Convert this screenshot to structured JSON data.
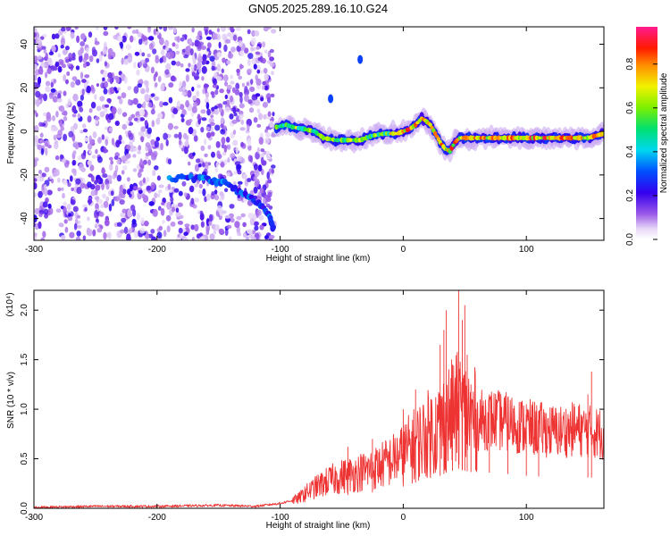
{
  "title": "GN05.2025.289.16.10.G24",
  "chart_data": [
    {
      "type": "heatmap",
      "title": "GN05.2025.289.16.10.G24",
      "xlabel": "Height of straight line (km)",
      "ylabel": "Frequency (Hz)",
      "xlim": [
        -300,
        163
      ],
      "ylim": [
        -50,
        48
      ],
      "xticks": [
        "-300",
        "-200",
        "-100",
        "0",
        "100"
      ],
      "xtick_values": [
        -300,
        -200,
        -100,
        0,
        100
      ],
      "yticks": [
        "40",
        "20",
        "0",
        "-20",
        "-40"
      ],
      "ytick_values": [
        40,
        20,
        0,
        -20,
        -40
      ],
      "colorbar": {
        "label": "Normalized spectral amplitude",
        "range": [
          0,
          0.97
        ],
        "ticks": [
          "0.0",
          "0.2",
          "0.4",
          "0.6",
          "0.8"
        ],
        "tick_values": [
          0,
          0.2,
          0.4,
          0.6,
          0.8
        ],
        "colormap": "rainbow (white → violet → blue → cyan → green → yellow → red → magenta)"
      },
      "noise_region_x": [
        -300,
        -105
      ],
      "arc_feature": {
        "points": [
          [
            -190,
            -22
          ],
          [
            -175,
            -21
          ],
          [
            -160,
            -22
          ],
          [
            -150,
            -23
          ],
          [
            -140,
            -25
          ],
          [
            -130,
            -29
          ],
          [
            -120,
            -32
          ],
          [
            -112,
            -36
          ],
          [
            -108,
            -40
          ],
          [
            -105,
            -46
          ]
        ]
      },
      "signal_track": {
        "points": [
          [
            -103,
            2
          ],
          [
            -95,
            3
          ],
          [
            -90,
            2
          ],
          [
            -80,
            1
          ],
          [
            -72,
            0
          ],
          [
            -65,
            -3
          ],
          [
            -55,
            -4
          ],
          [
            -45,
            -4
          ],
          [
            -35,
            -4
          ],
          [
            -25,
            -2
          ],
          [
            -15,
            -1
          ],
          [
            -5,
            -1
          ],
          [
            0,
            0
          ],
          [
            5,
            1
          ],
          [
            10,
            3
          ],
          [
            15,
            6
          ],
          [
            18,
            5
          ],
          [
            22,
            3
          ],
          [
            26,
            -1
          ],
          [
            30,
            -5
          ],
          [
            34,
            -8
          ],
          [
            38,
            -9
          ],
          [
            42,
            -5
          ],
          [
            46,
            -3
          ],
          [
            55,
            -3
          ],
          [
            70,
            -3
          ],
          [
            90,
            -3
          ],
          [
            110,
            -3
          ],
          [
            130,
            -3
          ],
          [
            150,
            -3
          ],
          [
            163,
            -1
          ]
        ]
      },
      "outlier_blobs": [
        [
          -59,
          15
        ],
        [
          -35,
          33
        ]
      ]
    },
    {
      "type": "line",
      "xlabel": "Height of straight line (km)",
      "ylabel": "SNR (10 * v/v)",
      "scale_note": "(x10⁴)",
      "xlim": [
        -300,
        163
      ],
      "ylim": [
        0,
        2.2
      ],
      "xticks": [
        "-300",
        "-200",
        "-100",
        "0",
        "100"
      ],
      "xtick_values": [
        -300,
        -200,
        -100,
        0,
        100
      ],
      "yticks": [
        "0.0",
        "0.5",
        "1.0",
        "1.5",
        "2.0"
      ],
      "ytick_values": [
        0,
        0.5,
        1.0,
        1.5,
        2.0
      ],
      "line_color": "#ee3333",
      "x": [
        -300,
        -250,
        -200,
        -150,
        -120,
        -100,
        -90,
        -85,
        -80,
        -70,
        -60,
        -50,
        -40,
        -30,
        -20,
        -10,
        0,
        10,
        20,
        30,
        35,
        40,
        45,
        50,
        60,
        70,
        80,
        90,
        100,
        110,
        120,
        130,
        140,
        150,
        163
      ],
      "values": [
        0.01,
        0.02,
        0.02,
        0.03,
        0.02,
        0.05,
        0.08,
        0.1,
        0.15,
        0.22,
        0.28,
        0.32,
        0.35,
        0.38,
        0.42,
        0.48,
        0.55,
        0.65,
        0.75,
        0.82,
        0.9,
        0.95,
        1.0,
        0.95,
        0.88,
        0.9,
        0.88,
        0.85,
        0.82,
        0.8,
        0.78,
        0.78,
        0.8,
        0.78,
        0.75
      ],
      "spikes": [
        [
          -80,
          0.22
        ],
        [
          -45,
          0.62
        ],
        [
          -25,
          0.7
        ],
        [
          0,
          1.0
        ],
        [
          10,
          1.2
        ],
        [
          30,
          1.65
        ],
        [
          33,
          1.8
        ],
        [
          35,
          2.0
        ],
        [
          40,
          1.45
        ],
        [
          45,
          2.3
        ],
        [
          48,
          1.9
        ],
        [
          50,
          2.05
        ],
        [
          52,
          1.55
        ],
        [
          55,
          1.25
        ],
        [
          70,
          1.15
        ],
        [
          85,
          1.12
        ],
        [
          100,
          1.05
        ],
        [
          110,
          0.98
        ],
        [
          150,
          1.15
        ],
        [
          153,
          1.38
        ]
      ]
    }
  ]
}
